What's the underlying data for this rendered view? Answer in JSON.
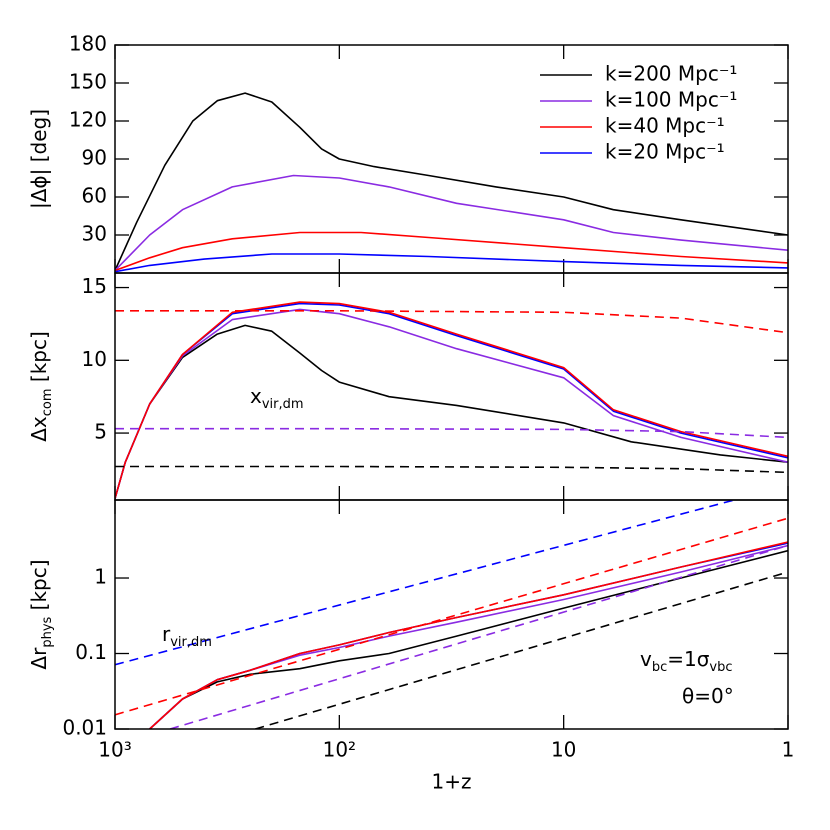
{
  "chart_data": [
    {
      "type": "line",
      "xscale": "log",
      "xlim": [
        1000,
        1
      ],
      "xticks": [
        1000,
        100,
        10,
        1
      ],
      "xtick_labels": false,
      "ylim": [
        0,
        180
      ],
      "yticks": [
        30,
        60,
        90,
        120,
        150,
        180
      ],
      "ylabel": [
        "|Δϕ| [deg]"
      ],
      "legend": "upper right",
      "series": [
        {
          "name": "k=200 Mpc⁻¹",
          "color": "#000000",
          "x": [
            1000,
            800,
            600,
            450,
            350,
            263,
            200,
            150,
            120,
            100,
            70,
            40,
            20,
            10,
            6,
            3,
            1
          ],
          "values": [
            2,
            40,
            85,
            120,
            136,
            142,
            135,
            115,
            98,
            90,
            84,
            77,
            68,
            60,
            50,
            42,
            30
          ]
        },
        {
          "name": "k=100 Mpc⁻¹",
          "color": "#8a2be2",
          "x": [
            1000,
            700,
            500,
            300,
            160,
            100,
            60,
            30,
            10,
            6,
            3,
            1
          ],
          "values": [
            2,
            30,
            50,
            68,
            77,
            75,
            68,
            55,
            42,
            32,
            26,
            18
          ]
        },
        {
          "name": "k=40 Mpc⁻¹",
          "color": "#ff0000",
          "x": [
            1000,
            700,
            500,
            300,
            150,
            80,
            40,
            10,
            3,
            1
          ],
          "values": [
            2,
            12,
            20,
            27,
            32,
            32,
            28,
            20,
            13,
            8
          ]
        },
        {
          "name": "k=20 Mpc⁻¹",
          "color": "#0000ff",
          "x": [
            1000,
            700,
            400,
            200,
            100,
            40,
            10,
            3,
            1
          ],
          "values": [
            1,
            6,
            11,
            15,
            15,
            13,
            9,
            6,
            4
          ]
        }
      ]
    },
    {
      "type": "line",
      "xscale": "log",
      "xlim": [
        1000,
        1
      ],
      "xticks": [
        1000,
        100,
        10,
        1
      ],
      "xtick_labels": false,
      "ylim": [
        0.4,
        16
      ],
      "yticks": [
        5,
        10,
        15
      ],
      "ylabel": [
        "Δx",
        "com",
        " [kpc]"
      ],
      "annotations": [
        {
          "text": [
            "x",
            "vir,dm"
          ],
          "color": "#8a2be2"
        }
      ],
      "series": [
        {
          "color": "#000000",
          "x": [
            1000,
            900,
            700,
            500,
            350,
            263,
            200,
            150,
            120,
            100,
            60,
            30,
            10,
            5,
            2,
            1
          ],
          "values": [
            0.5,
            3,
            7,
            10.2,
            11.8,
            12.4,
            12,
            10.5,
            9.3,
            8.5,
            7.5,
            6.9,
            5.7,
            4.4,
            3.5,
            3
          ]
        },
        {
          "color": "#8a2be2",
          "x": [
            1000,
            900,
            700,
            500,
            300,
            150,
            100,
            60,
            30,
            10,
            6,
            3,
            1
          ],
          "values": [
            0.5,
            3,
            7,
            10.3,
            12.8,
            13.5,
            13.2,
            12.3,
            10.8,
            8.8,
            6.2,
            4.7,
            3
          ]
        },
        {
          "color": "#0000ff",
          "x": [
            1000,
            900,
            700,
            500,
            300,
            150,
            100,
            60,
            30,
            10,
            6,
            3,
            1
          ],
          "values": [
            0.5,
            3,
            7,
            10.4,
            13.2,
            13.9,
            13.8,
            13.2,
            11.7,
            9.4,
            6.5,
            5,
            3.3
          ]
        },
        {
          "color": "#ff0000",
          "x": [
            1000,
            900,
            700,
            500,
            300,
            150,
            100,
            60,
            30,
            10,
            6,
            3,
            1
          ],
          "values": [
            0.5,
            3,
            7,
            10.4,
            13.3,
            14,
            13.9,
            13.3,
            11.8,
            9.5,
            6.6,
            5.1,
            3.4
          ]
        },
        {
          "color": "#ff0000",
          "dash": true,
          "x": [
            1000,
            100,
            10,
            3,
            1
          ],
          "values": [
            13.4,
            13.4,
            13.3,
            12.9,
            11.9
          ]
        },
        {
          "color": "#8a2be2",
          "dash": true,
          "x": [
            1000,
            100,
            10,
            3,
            1
          ],
          "values": [
            5.3,
            5.3,
            5.25,
            5.1,
            4.7
          ]
        },
        {
          "color": "#000000",
          "dash": true,
          "x": [
            1000,
            100,
            10,
            3,
            1
          ],
          "values": [
            2.7,
            2.7,
            2.65,
            2.55,
            2.3
          ]
        }
      ]
    },
    {
      "type": "line",
      "xscale": "log",
      "xlim": [
        1000,
        1
      ],
      "xticks": [
        {
          "value": 1000,
          "label": "10³"
        },
        {
          "value": 100,
          "label": "10²"
        },
        10,
        1
      ],
      "xlabel": "1+z",
      "yscale": "log",
      "ylim": [
        0.01,
        10.8
      ],
      "yticks": [
        0.01,
        0.1,
        1
      ],
      "ylabel": [
        "Δr",
        "phys",
        " [kpc]"
      ],
      "annotations": [
        {
          "text": [
            "r",
            "vir,dm"
          ],
          "color": "#0000ff"
        },
        {
          "text": [
            "v",
            "bc",
            "=1σ",
            "vbc"
          ],
          "color": "#000000"
        },
        {
          "text": [
            "θ=0°"
          ],
          "color": "#000000"
        }
      ],
      "series": [
        {
          "color": "#000000",
          "x": [
            700,
            500,
            350,
            250,
            150,
            100,
            60,
            30,
            10,
            3,
            1
          ],
          "values": [
            0.01,
            0.025,
            0.042,
            0.053,
            0.063,
            0.08,
            0.1,
            0.17,
            0.4,
            1.0,
            2.3
          ]
        },
        {
          "color": "#8a2be2",
          "x": [
            700,
            500,
            350,
            250,
            150,
            100,
            60,
            30,
            10,
            3,
            1
          ],
          "values": [
            0.01,
            0.025,
            0.045,
            0.06,
            0.095,
            0.12,
            0.17,
            0.26,
            0.52,
            1.2,
            2.7
          ]
        },
        {
          "color": "#0000ff",
          "x": [
            700,
            500,
            350,
            250,
            150,
            100,
            60,
            30,
            10,
            3,
            1
          ],
          "values": [
            0.01,
            0.025,
            0.045,
            0.06,
            0.1,
            0.13,
            0.19,
            0.3,
            0.6,
            1.4,
            2.9
          ]
        },
        {
          "color": "#ff0000",
          "x": [
            700,
            500,
            350,
            250,
            150,
            100,
            60,
            30,
            10,
            3,
            1
          ],
          "values": [
            0.01,
            0.025,
            0.045,
            0.06,
            0.1,
            0.13,
            0.19,
            0.3,
            0.6,
            1.4,
            3.0
          ]
        },
        {
          "color": "#0000ff",
          "dash": true,
          "x": [
            1000,
            1
          ],
          "values": [
            0.071,
            16.7
          ]
        },
        {
          "color": "#ff0000",
          "dash": true,
          "x": [
            1000,
            1
          ],
          "values": [
            0.0154,
            6.2
          ]
        },
        {
          "color": "#8a2be2",
          "dash": true,
          "x": [
            568,
            1
          ],
          "values": [
            0.01,
            2.7
          ]
        },
        {
          "color": "#000000",
          "dash": true,
          "x": [
            237,
            1
          ],
          "values": [
            0.01,
            1.2
          ]
        }
      ]
    }
  ]
}
